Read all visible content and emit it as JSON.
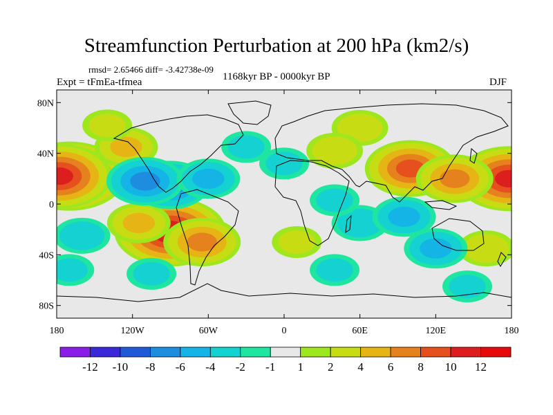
{
  "title": "Streamfunction Perturbation at 200 hPa (km2/s)",
  "stats": "rmsd= 2.65466 diff= -3.42738e-09",
  "experiment": "Expt = tFmEa-tfmea",
  "period": "1168kyr BP - 0000kyr BP",
  "season": "DJF",
  "chart_data": {
    "type": "contour-map",
    "variable": "Streamfunction perturbation",
    "level": "200 hPa",
    "units": "km2/s",
    "x_ticks": [
      "180",
      "120W",
      "60W",
      "0",
      "60E",
      "120E",
      "180"
    ],
    "x_tick_lons": [
      -180,
      -120,
      -60,
      0,
      60,
      120,
      180
    ],
    "y_ticks": [
      "80N",
      "40N",
      "0",
      "40S",
      "80S"
    ],
    "y_tick_lats": [
      80,
      40,
      0,
      -40,
      -80
    ],
    "lon_range": [
      -180,
      180
    ],
    "lat_range": [
      -90,
      90
    ],
    "colorbar": {
      "levels": [
        "-12",
        "-10",
        "-8",
        "-6",
        "-4",
        "-2",
        "-1",
        "1",
        "2",
        "4",
        "6",
        "8",
        "10",
        "12"
      ],
      "colors": [
        "#8a1ee6",
        "#3b28d8",
        "#1e5ad6",
        "#1e8cdf",
        "#14b4e6",
        "#14d2d2",
        "#1ee6a0",
        "#e8e8e8",
        "#9ee61e",
        "#c8dc14",
        "#e6b414",
        "#e6821e",
        "#e6501e",
        "#dc1e1e",
        "#e60a0a"
      ]
    },
    "anomalies": [
      {
        "lon": -170,
        "lat": 22,
        "value": 11
      },
      {
        "lon": -178,
        "lat": 22,
        "value": 10
      },
      {
        "lon": 178,
        "lat": 20,
        "value": 10
      },
      {
        "lon": -90,
        "lat": -22,
        "value": 11
      },
      {
        "lon": -65,
        "lat": -30,
        "value": 6
      },
      {
        "lon": -115,
        "lat": -15,
        "value": 4
      },
      {
        "lon": 100,
        "lat": 28,
        "value": 8
      },
      {
        "lon": 135,
        "lat": 20,
        "value": 6
      },
      {
        "lon": 60,
        "lat": 60,
        "value": 3
      },
      {
        "lon": 40,
        "lat": 42,
        "value": 3
      },
      {
        "lon": -125,
        "lat": 45,
        "value": 4
      },
      {
        "lon": -140,
        "lat": 62,
        "value": 2
      },
      {
        "lon": 160,
        "lat": -35,
        "value": 3
      },
      {
        "lon": 10,
        "lat": -30,
        "value": 2
      },
      {
        "lon": -90,
        "lat": 15,
        "value": -6
      },
      {
        "lon": -110,
        "lat": 18,
        "value": -6
      },
      {
        "lon": -60,
        "lat": 20,
        "value": -4
      },
      {
        "lon": -30,
        "lat": 45,
        "value": -2
      },
      {
        "lon": 0,
        "lat": 32,
        "value": -2
      },
      {
        "lon": 60,
        "lat": -15,
        "value": -3
      },
      {
        "lon": 95,
        "lat": -10,
        "value": -4
      },
      {
        "lon": 120,
        "lat": -35,
        "value": -4
      },
      {
        "lon": -160,
        "lat": -25,
        "value": -3
      },
      {
        "lon": -170,
        "lat": -52,
        "value": -2
      },
      {
        "lon": -105,
        "lat": -55,
        "value": -2
      },
      {
        "lon": 40,
        "lat": -52,
        "value": -2
      },
      {
        "lon": 145,
        "lat": -65,
        "value": -2
      },
      {
        "lon": 40,
        "lat": 3,
        "value": -2
      }
    ]
  }
}
